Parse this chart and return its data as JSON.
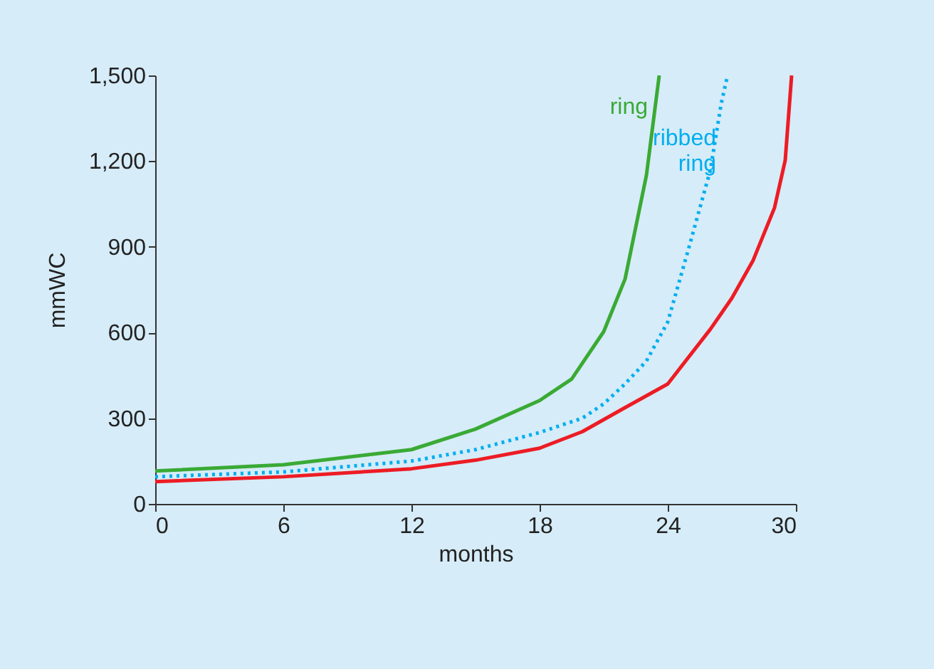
{
  "chart_data": {
    "type": "line",
    "xlabel": "months",
    "ylabel": "mmWC",
    "xlim": [
      0,
      30
    ],
    "xticks": [
      0,
      6,
      12,
      18,
      24,
      30
    ],
    "ylim": [
      0,
      1500
    ],
    "yticks": [
      0,
      300,
      600,
      900,
      {
        "value": 1200,
        "label": "1,200"
      },
      {
        "value": 1500,
        "label": "1,500"
      }
    ],
    "grid": false,
    "legend": false,
    "marker": "none",
    "series": [
      {
        "name": "ring",
        "color": "#3aaa35",
        "line_style": "solid",
        "x": [
          0,
          6,
          12,
          15,
          18,
          19.5,
          21,
          22,
          23,
          23.6
        ],
        "values": [
          115,
          137,
          190,
          262,
          362,
          437,
          603,
          787,
          1150,
          1500
        ]
      },
      {
        "name": "ribbed ring",
        "color": "#00aeef",
        "line_style": "dotted",
        "x": [
          0,
          6,
          12,
          15,
          18,
          20,
          21,
          22,
          23,
          24,
          25,
          26,
          26.5,
          26.8
        ],
        "values": [
          95,
          112,
          150,
          190,
          250,
          300,
          350,
          420,
          500,
          637,
          900,
          1170,
          1400,
          1500
        ]
      },
      {
        "color": "#ed1c24",
        "line_style": "solid",
        "x": [
          0,
          6,
          12,
          15,
          18,
          20,
          22,
          24,
          26,
          27,
          28,
          29,
          29.5,
          29.8
        ],
        "values": [
          78,
          95,
          123,
          153,
          195,
          253,
          337,
          420,
          612,
          720,
          853,
          1037,
          1203,
          1500
        ]
      }
    ]
  }
}
